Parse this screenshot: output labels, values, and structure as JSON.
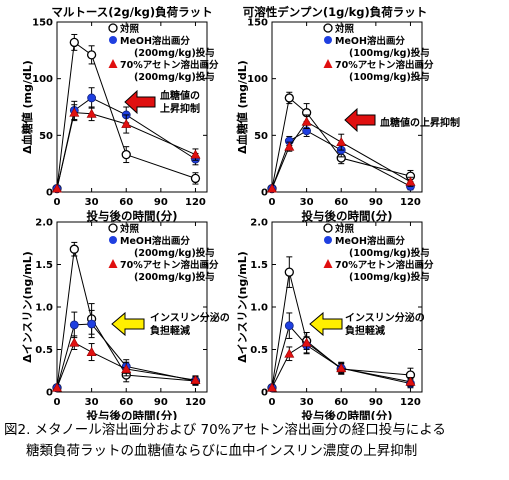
{
  "chart_data": [
    {
      "type": "line",
      "title": "マルトース(2g/kg)負荷ラット",
      "xlabel": "投与後の時間(分)",
      "ylabel": "Δ血糖値 (mg/dL)",
      "xlim": [
        0,
        130
      ],
      "ylim": [
        0,
        150
      ],
      "xticks": [
        0,
        30,
        60,
        90,
        120
      ],
      "yticks": [
        0,
        50,
        100,
        150
      ],
      "legend": [
        "対照",
        "MeOH溶出画分",
        "(200mg/kg)投与",
        "70%アセトン溶出画分",
        "(200mg/kg)投与"
      ],
      "annotation": "血糖値の\n上昇抑制",
      "series": [
        {
          "name": "対照",
          "marker": "open-circle",
          "x": [
            0,
            15,
            30,
            60,
            120
          ],
          "y": [
            3,
            132,
            121,
            33,
            12
          ],
          "err": [
            0,
            7,
            8,
            7,
            5
          ]
        },
        {
          "name": "MeOH溶出画分 (200mg/kg)投与",
          "marker": "blue-circle",
          "x": [
            0,
            15,
            30,
            60,
            120
          ],
          "y": [
            3,
            72,
            83,
            68,
            29
          ],
          "err": [
            0,
            8,
            9,
            7,
            5
          ]
        },
        {
          "name": "70%アセトン溶出画分 (200mg/kg)投与",
          "marker": "red-triangle",
          "x": [
            0,
            15,
            30,
            60,
            120
          ],
          "y": [
            3,
            70,
            69,
            60,
            33
          ],
          "err": [
            0,
            7,
            6,
            8,
            5
          ]
        }
      ]
    },
    {
      "type": "line",
      "title": "可溶性デンプン(1g/kg)負荷ラット",
      "xlabel": "投与後の時間(分)",
      "ylabel": "Δ血糖値 (mg/dL)",
      "xlim": [
        0,
        130
      ],
      "ylim": [
        0,
        150
      ],
      "xticks": [
        0,
        30,
        60,
        90,
        120
      ],
      "yticks": [
        0,
        50,
        100,
        150
      ],
      "legend": [
        "対照",
        "MeOH溶出画分",
        "(100mg/kg)投与",
        "70%アセトン溶出画分",
        "(100mg/kg)投与"
      ],
      "annotation": "血糖値の上昇抑制",
      "series": [
        {
          "name": "対照",
          "marker": "open-circle",
          "x": [
            0,
            15,
            30,
            60,
            120
          ],
          "y": [
            3,
            83,
            70,
            30,
            14
          ],
          "err": [
            0,
            5,
            8,
            5,
            5
          ]
        },
        {
          "name": "MeOH溶出画分 (100mg/kg)投与",
          "marker": "blue-circle",
          "x": [
            0,
            15,
            30,
            60,
            120
          ],
          "y": [
            3,
            45,
            54,
            37,
            5
          ],
          "err": [
            0,
            4,
            5,
            6,
            3
          ]
        },
        {
          "name": "70%アセトン溶出画分 (100mg/kg)投与",
          "marker": "red-triangle",
          "x": [
            0,
            15,
            30,
            60,
            120
          ],
          "y": [
            3,
            40,
            62,
            44,
            9
          ],
          "err": [
            0,
            4,
            6,
            7,
            4
          ]
        }
      ]
    },
    {
      "type": "line",
      "title": "",
      "xlabel": "投与後の時間(分)",
      "ylabel": "Δインスリン(ng/mL)",
      "xlim": [
        0,
        130
      ],
      "ylim": [
        0,
        2.0
      ],
      "xticks": [
        0,
        30,
        60,
        90,
        120
      ],
      "yticks": [
        0,
        0.5,
        1.0,
        1.5,
        2.0
      ],
      "ytick_labels": [
        "0",
        "0.5",
        "1.0",
        "1.5",
        "2.0"
      ],
      "legend": [
        "対照",
        "MeOH溶出画分",
        "(200mg/kg)投与",
        "70%アセトン溶出画分",
        "(200mg/kg)投与"
      ],
      "annotation": "インスリン分泌の\n負担軽減",
      "series": [
        {
          "name": "対照",
          "marker": "open-circle",
          "x": [
            0,
            15,
            30,
            60,
            120
          ],
          "y": [
            0.05,
            1.68,
            0.86,
            0.2,
            0.13
          ],
          "err": [
            0,
            0.08,
            0.18,
            0.08,
            0.05
          ]
        },
        {
          "name": "MeOH溶出画分 (200mg/kg)投与",
          "marker": "blue-circle",
          "x": [
            0,
            15,
            30,
            60,
            120
          ],
          "y": [
            0.05,
            0.79,
            0.8,
            0.3,
            0.13
          ],
          "err": [
            0,
            0.15,
            0.16,
            0.08,
            0.05
          ]
        },
        {
          "name": "70%アセトン溶出画分 (200mg/kg)投与",
          "marker": "red-triangle",
          "x": [
            0,
            15,
            30,
            60,
            120
          ],
          "y": [
            0.05,
            0.58,
            0.47,
            0.27,
            0.14
          ],
          "err": [
            0,
            0.08,
            0.1,
            0.08,
            0.05
          ]
        }
      ]
    },
    {
      "type": "line",
      "title": "",
      "xlabel": "投与後の時間(分)",
      "ylabel": "Δインスリン(ng/mL)",
      "xlim": [
        0,
        130
      ],
      "ylim": [
        0,
        2.0
      ],
      "xticks": [
        0,
        30,
        60,
        90,
        120
      ],
      "yticks": [
        0,
        0.5,
        1.0,
        1.5,
        2.0
      ],
      "ytick_labels": [
        "0",
        "0.5",
        "1.0",
        "1.5",
        "2.0"
      ],
      "legend": [
        "対照",
        "MeOH溶出画分",
        "(100mg/kg)投与",
        "70%アセトン溶出画分",
        "(100mg/kg)投与"
      ],
      "annotation": "インスリン分泌の\n負担軽減",
      "series": [
        {
          "name": "対照",
          "marker": "open-circle",
          "x": [
            0,
            15,
            30,
            60,
            120
          ],
          "y": [
            0.05,
            1.41,
            0.6,
            0.27,
            0.2
          ],
          "err": [
            0,
            0.18,
            0.1,
            0.06,
            0.08
          ]
        },
        {
          "name": "MeOH溶出画分 (100mg/kg)投与",
          "marker": "blue-circle",
          "x": [
            0,
            15,
            30,
            60,
            120
          ],
          "y": [
            0.05,
            0.78,
            0.55,
            0.28,
            0.1
          ],
          "err": [
            0,
            0.15,
            0.1,
            0.07,
            0.05
          ]
        },
        {
          "name": "70%アセトン溶出画分 (100mg/kg)投与",
          "marker": "red-triangle",
          "x": [
            0,
            15,
            30,
            60,
            120
          ],
          "y": [
            0.05,
            0.45,
            0.58,
            0.28,
            0.12
          ],
          "err": [
            0,
            0.08,
            0.12,
            0.06,
            0.05
          ]
        }
      ]
    }
  ],
  "colors": {
    "blue": "#1f3fe0",
    "red": "#e01010",
    "arrow_red": "#e01010",
    "arrow_yellow": "#ffef00"
  },
  "caption": {
    "line1": "図2. メタノール溶出画分および 70%アセトン溶出画分の経口投与による",
    "line2": "糖類負荷ラットの血糖値ならびに血中インスリン濃度の上昇抑制"
  }
}
